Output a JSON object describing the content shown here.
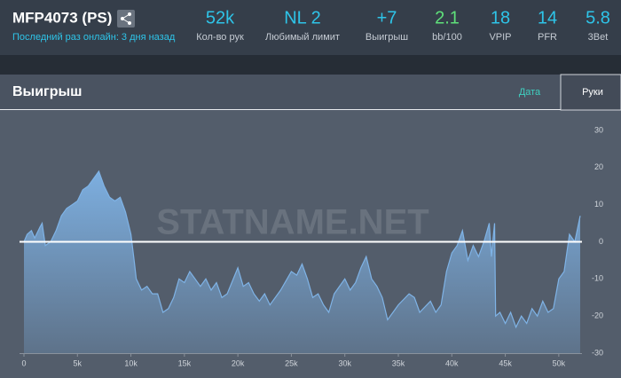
{
  "header": {
    "title": "MFP4073 (PS)",
    "subtitle": "Последний раз онлайн: 3 дня назад",
    "stats": [
      {
        "value": "52k",
        "label": "Кол-во рук",
        "color": "#2ec4e8"
      },
      {
        "value": "NL 2",
        "label": "Любимый лимит",
        "color": "#2ec4e8"
      },
      {
        "value": "+7",
        "label": "Выигрыш",
        "color": "#2ec4e8"
      },
      {
        "value": "2.1",
        "label": "bb/100",
        "color": "#5fe07a"
      },
      {
        "value": "18",
        "label": "VPIP",
        "color": "#2ec4e8"
      },
      {
        "value": "14",
        "label": "PFR",
        "color": "#2ec4e8"
      },
      {
        "value": "5.8",
        "label": "3Bet",
        "color": "#2ec4e8"
      }
    ]
  },
  "panel": {
    "title": "Выигрыш",
    "tabs": [
      "Дата",
      "Руки"
    ]
  },
  "watermark": "STATNAME.NET",
  "chart_data": {
    "type": "area",
    "color": "#7fb3e6",
    "x": [
      0,
      300,
      700,
      1000,
      1500,
      1700,
      2000,
      2500,
      3000,
      3500,
      4000,
      4500,
      5000,
      5500,
      6000,
      6500,
      7000,
      7500,
      8000,
      8500,
      9000,
      9500,
      10000,
      10300,
      10500,
      11000,
      11500,
      12000,
      12500,
      13000,
      13500,
      14000,
      14500,
      15000,
      15500,
      16000,
      16500,
      17000,
      17500,
      18000,
      18500,
      19000,
      20000,
      20500,
      21000,
      21500,
      22000,
      22500,
      23000,
      24000,
      25000,
      25500,
      26000,
      26500,
      27000,
      27500,
      28000,
      28500,
      29000,
      30000,
      30500,
      31000,
      31500,
      32000,
      32500,
      33000,
      33500,
      34000,
      34500,
      35000,
      36000,
      36500,
      37000,
      38000,
      38500,
      39000,
      39500,
      40000,
      40500,
      41000,
      41500,
      42000,
      42500,
      43000,
      43500,
      43700,
      44000,
      44100,
      44500,
      45000,
      45500,
      46000,
      46500,
      47000,
      47500,
      48000,
      48500,
      49000,
      49500,
      50000,
      50500,
      51000,
      51500,
      52000
    ],
    "values": [
      0,
      2,
      3,
      1,
      4,
      5,
      -1,
      0,
      3,
      7,
      9,
      10,
      11,
      14,
      15,
      17,
      19,
      15,
      12,
      11,
      12,
      8,
      2,
      -5,
      -10,
      -13,
      -12,
      -14,
      -14,
      -19,
      -18,
      -15,
      -10,
      -11,
      -8,
      -10,
      -12,
      -10,
      -13,
      -11,
      -15,
      -14,
      -7,
      -12,
      -11,
      -14,
      -16,
      -14,
      -17,
      -13,
      -8,
      -9,
      -6,
      -10,
      -15,
      -14,
      -17,
      -19,
      -14,
      -10,
      -13,
      -11,
      -7,
      -4,
      -10,
      -12,
      -15,
      -21,
      -19,
      -17,
      -14,
      -15,
      -19,
      -16,
      -19,
      -17,
      -8,
      -3,
      -1,
      3,
      -5,
      -1,
      -4,
      0,
      5,
      -4,
      5,
      -20,
      -19,
      -22,
      -19,
      -23,
      -20,
      -22,
      -18,
      -20,
      -16,
      -19,
      -18,
      -10,
      -8,
      2,
      0,
      7
    ],
    "xlim": [
      0,
      52500
    ],
    "ylim": [
      -30,
      30
    ],
    "xticks": [
      0,
      {
        "value": 5000,
        "label": "5k"
      },
      {
        "value": 10000,
        "label": "10k"
      },
      {
        "value": 15000,
        "label": "15k"
      },
      {
        "value": 20000,
        "label": "20k"
      },
      {
        "value": 25000,
        "label": "25k"
      },
      {
        "value": 30000,
        "label": "30k"
      },
      {
        "value": 35000,
        "label": "35k"
      },
      {
        "value": 40000,
        "label": "40k"
      },
      {
        "value": 45000,
        "label": "45k"
      },
      {
        "value": 50000,
        "label": "50k"
      }
    ],
    "yticks": [
      -30,
      -20,
      -10,
      0,
      10,
      20,
      30
    ]
  }
}
